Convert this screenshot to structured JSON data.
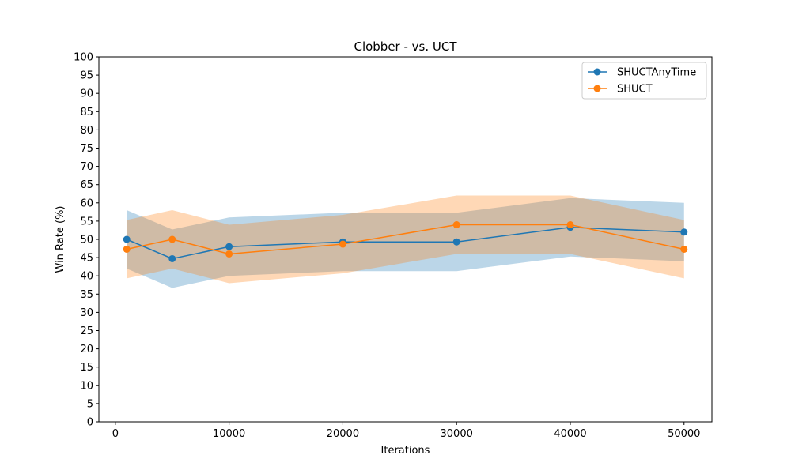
{
  "chart_data": {
    "type": "line",
    "title": "Clobber - vs. UCT",
    "xlabel": "Iterations",
    "ylabel": "Win Rate (%)",
    "xlim": [
      -1450,
      52450
    ],
    "ylim": [
      0,
      100
    ],
    "xticks": [
      0,
      10000,
      20000,
      30000,
      40000,
      50000
    ],
    "yticks": [
      0,
      5,
      10,
      15,
      20,
      25,
      30,
      35,
      40,
      45,
      50,
      55,
      60,
      65,
      70,
      75,
      80,
      85,
      90,
      95,
      100
    ],
    "grid": false,
    "legend_position": "top-right",
    "x": [
      1000,
      5000,
      10000,
      20000,
      30000,
      40000,
      50000
    ],
    "series": [
      {
        "name": "SHUCTAnyTime",
        "color": "#1f77b4",
        "band_color": "#1f77b4",
        "values": [
          50.0,
          44.7,
          48.0,
          49.3,
          49.3,
          53.3,
          52.0
        ],
        "lower": [
          42.0,
          36.7,
          40.0,
          41.3,
          41.3,
          45.3,
          44.0
        ],
        "upper": [
          58.0,
          52.7,
          56.0,
          57.3,
          57.3,
          61.3,
          60.0
        ]
      },
      {
        "name": "SHUCT",
        "color": "#ff7f0e",
        "band_color": "#ff7f0e",
        "values": [
          47.3,
          50.0,
          46.0,
          48.7,
          54.0,
          54.0,
          47.3
        ],
        "lower": [
          39.3,
          42.0,
          38.0,
          40.7,
          46.0,
          46.0,
          39.3
        ],
        "upper": [
          55.3,
          58.0,
          54.0,
          56.7,
          62.0,
          62.0,
          55.3
        ]
      }
    ]
  }
}
